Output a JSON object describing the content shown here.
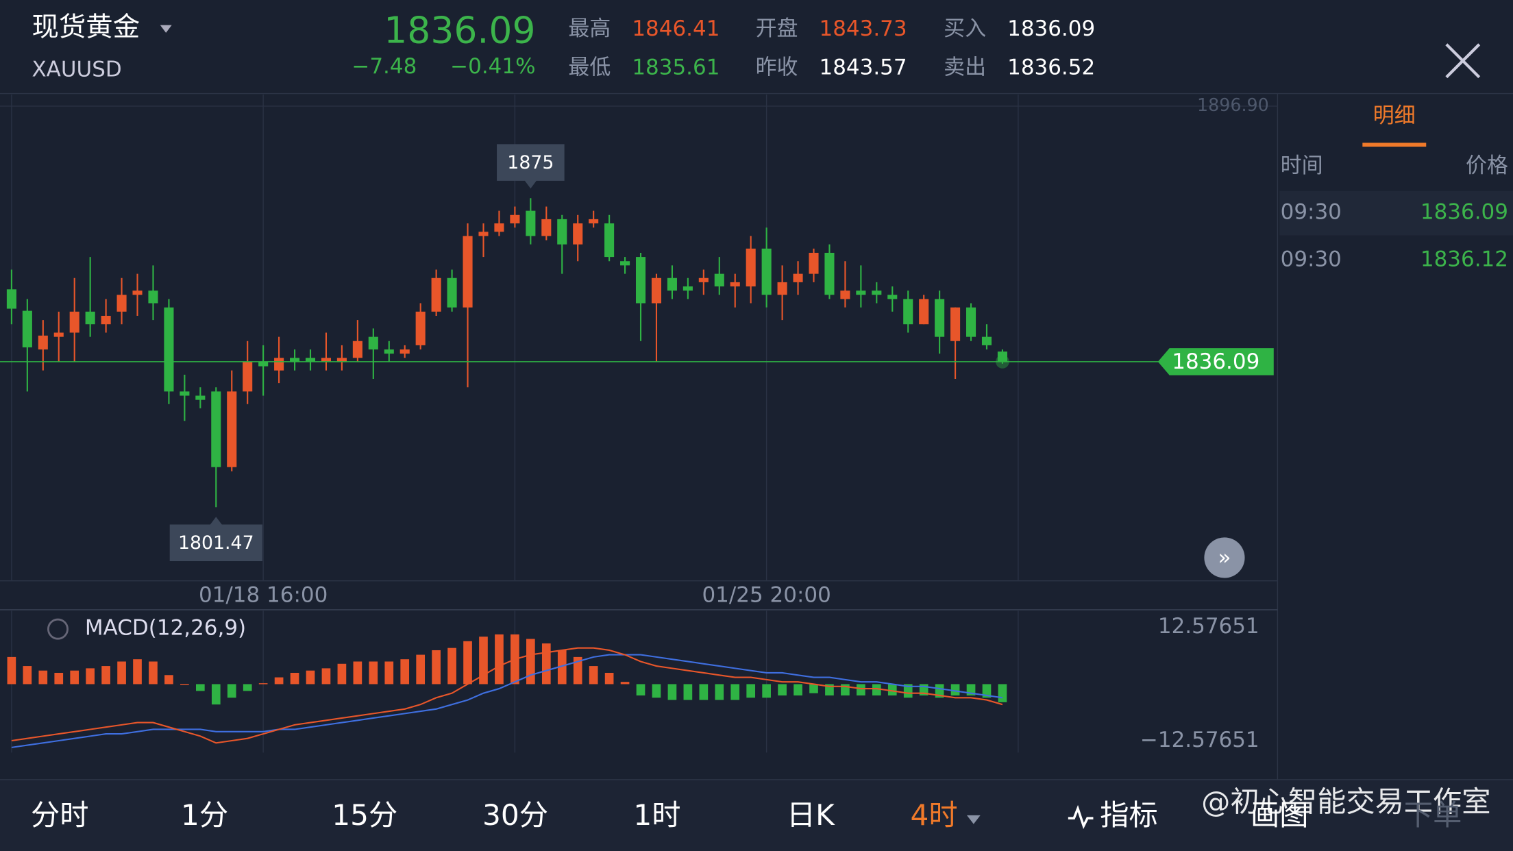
{
  "header": {
    "name": "现货黄金",
    "symbol": "XAUUSD",
    "price": "1836.09",
    "change": "−7.48",
    "change_pct": "−0.41%",
    "stats": [
      {
        "label": "最高",
        "value": "1846.41",
        "color": "#e8562a"
      },
      {
        "label": "最低",
        "value": "1835.61",
        "color": "#3cb44b"
      },
      {
        "label": "开盘",
        "value": "1843.73",
        "color": "#e8562a"
      },
      {
        "label": "昨收",
        "value": "1843.57",
        "color": "#ffffff"
      },
      {
        "label": "买入",
        "value": "1836.09",
        "color": "#ffffff"
      },
      {
        "label": "卖出",
        "value": "1836.52",
        "color": "#ffffff"
      }
    ]
  },
  "chart": {
    "ylim": [
      1784.4,
      1896.9
    ],
    "ytick": {
      "value": 1896.9,
      "label": "1896.90"
    },
    "up_color": "#e8562a",
    "down_color": "#2fb344",
    "candles": [
      [
        1853.3,
        1858,
        1845,
        1848.7
      ],
      [
        1848.2,
        1851,
        1829,
        1839.5
      ],
      [
        1839,
        1846,
        1834,
        1842.3
      ],
      [
        1842,
        1848,
        1836,
        1843
      ],
      [
        1843,
        1856,
        1836,
        1848
      ],
      [
        1848,
        1861,
        1842,
        1845
      ],
      [
        1845,
        1851,
        1843,
        1847
      ],
      [
        1848,
        1856,
        1845,
        1852
      ],
      [
        1852,
        1857,
        1847,
        1853
      ],
      [
        1853,
        1859,
        1846,
        1850
      ],
      [
        1849,
        1851,
        1826,
        1829
      ],
      [
        1829,
        1833,
        1822,
        1828
      ],
      [
        1828,
        1830,
        1825,
        1827
      ],
      [
        1829,
        1830,
        1801.47,
        1811
      ],
      [
        1811,
        1834,
        1810,
        1829
      ],
      [
        1829,
        1841,
        1826,
        1836
      ],
      [
        1836,
        1840,
        1828,
        1835
      ],
      [
        1834,
        1842,
        1831,
        1837
      ],
      [
        1837,
        1839,
        1834,
        1836
      ],
      [
        1837,
        1839,
        1834,
        1836
      ],
      [
        1836,
        1843,
        1834,
        1837
      ],
      [
        1836,
        1840,
        1834,
        1837
      ],
      [
        1837,
        1846,
        1836,
        1841
      ],
      [
        1842,
        1844,
        1832,
        1839
      ],
      [
        1839,
        1841,
        1836,
        1838
      ],
      [
        1838,
        1840,
        1837,
        1839
      ],
      [
        1840,
        1850,
        1839,
        1848
      ],
      [
        1848,
        1858,
        1847,
        1856
      ],
      [
        1856,
        1858,
        1848,
        1849
      ],
      [
        1849,
        1869,
        1830,
        1866
      ],
      [
        1866,
        1869,
        1861,
        1867
      ],
      [
        1867,
        1872,
        1866,
        1869
      ],
      [
        1869,
        1873,
        1868,
        1871
      ],
      [
        1872,
        1875,
        1864,
        1866
      ],
      [
        1866,
        1873,
        1865,
        1870
      ],
      [
        1870,
        1871,
        1857,
        1864
      ],
      [
        1864,
        1871,
        1860,
        1869
      ],
      [
        1869,
        1872,
        1868,
        1870
      ],
      [
        1869,
        1871,
        1860,
        1861
      ],
      [
        1860,
        1861,
        1857,
        1859
      ],
      [
        1861,
        1862,
        1841,
        1850
      ],
      [
        1850,
        1857,
        1836,
        1856
      ],
      [
        1856,
        1859,
        1851,
        1853
      ],
      [
        1854,
        1856,
        1851,
        1853
      ],
      [
        1855,
        1858,
        1852,
        1856
      ],
      [
        1857,
        1861,
        1852,
        1854
      ],
      [
        1854,
        1857,
        1849,
        1855
      ],
      [
        1854,
        1866,
        1850,
        1863
      ],
      [
        1863,
        1868,
        1849,
        1852
      ],
      [
        1852,
        1859,
        1846,
        1855
      ],
      [
        1855,
        1860,
        1852,
        1857
      ],
      [
        1857,
        1863,
        1855,
        1862
      ],
      [
        1862,
        1864,
        1851,
        1852
      ],
      [
        1851,
        1860,
        1849,
        1853
      ],
      [
        1853,
        1859,
        1849,
        1852
      ],
      [
        1853,
        1855,
        1850,
        1852
      ],
      [
        1852,
        1854,
        1848,
        1851
      ],
      [
        1851,
        1853,
        1843,
        1845
      ],
      [
        1845,
        1852,
        1845,
        1851
      ],
      [
        1851,
        1853,
        1838,
        1842
      ],
      [
        1841,
        1849,
        1832,
        1849
      ],
      [
        1849,
        1850,
        1841,
        1842
      ],
      [
        1842,
        1845,
        1839,
        1840
      ],
      [
        1838.5,
        1839,
        1835.61,
        1836.09
      ]
    ],
    "xticks": [
      {
        "candle": 16,
        "label": "01/18 16:00"
      },
      {
        "candle": 48,
        "label": "01/25 20:00"
      }
    ],
    "high_mark": {
      "candle": 33,
      "value": 1875,
      "label": "1875"
    },
    "low_mark": {
      "candle": 13,
      "value": 1801.47,
      "label": "1801.47"
    },
    "last_price": {
      "value": 1836.09,
      "label": "1836.09"
    }
  },
  "macd": {
    "title": "MACD(12,26,9)",
    "ylim": [
      -16.2,
      15.8
    ],
    "yticks": [
      {
        "value": 12.57651,
        "label": "12.57651"
      },
      {
        "value": -12.57651,
        "label": "−12.57651"
      }
    ],
    "dif_color": "#e8562a",
    "dea_color": "#3f6fe0",
    "hist": [
      6,
      4,
      3,
      2.5,
      3,
      3.5,
      4,
      5,
      5.5,
      5,
      2,
      0,
      -1.5,
      -4.5,
      -3,
      -1.5,
      0.2,
      1.5,
      2.5,
      3,
      3.5,
      4.5,
      5,
      5,
      5,
      5.5,
      6.5,
      7.5,
      8,
      9.5,
      10.5,
      11,
      11,
      10,
      9,
      7.5,
      6,
      4,
      2.5,
      0.5,
      -2.5,
      -3,
      -3.5,
      -3.5,
      -3.5,
      -3.5,
      -3.5,
      -3,
      -3,
      -2.5,
      -2.5,
      -2,
      -2.5,
      -2.5,
      -2.5,
      -2.5,
      -2.5,
      -3,
      -2.5,
      -3,
      -2.5,
      -2.5,
      -3,
      -4
    ],
    "dif": [
      -12.5,
      -12,
      -11.5,
      -11,
      -10.5,
      -10,
      -9.5,
      -9,
      -8.5,
      -8.5,
      -9.5,
      -10.5,
      -11.5,
      -13,
      -12.5,
      -12,
      -11,
      -10,
      -9,
      -8.5,
      -8,
      -7.5,
      -7,
      -6.5,
      -6,
      -5.5,
      -4.5,
      -3,
      -2,
      0,
      2,
      4,
      5.5,
      6.5,
      7,
      7.5,
      8,
      8,
      7.5,
      6.5,
      5,
      4,
      3.5,
      3,
      2.5,
      2,
      1.5,
      1.5,
      1,
      0.5,
      0.5,
      0,
      -0.5,
      -0.5,
      -1,
      -1,
      -1.5,
      -2,
      -2,
      -2.5,
      -3,
      -3,
      -3.5,
      -4.5
    ],
    "dea": [
      -14,
      -13.5,
      -13,
      -12.5,
      -12,
      -11.5,
      -11,
      -11,
      -10.5,
      -10,
      -10,
      -10,
      -10,
      -10.5,
      -10.5,
      -10.5,
      -10.5,
      -10,
      -10,
      -9.5,
      -9,
      -8.5,
      -8,
      -7.5,
      -7,
      -6.5,
      -6,
      -5.5,
      -4.5,
      -3.5,
      -2,
      -1,
      0.5,
      2,
      3,
      4,
      5,
      6,
      6.5,
      6.5,
      6.5,
      6,
      5.5,
      5,
      4.5,
      4,
      3.5,
      3,
      2.5,
      2.5,
      2,
      1.5,
      1.5,
      1,
      0.5,
      0.5,
      0,
      -0.5,
      -0.5,
      -1,
      -1.5,
      -2,
      -2.5,
      -3
    ]
  },
  "detail": {
    "tab": "明细",
    "columns": [
      "时间",
      "价格"
    ],
    "rows": [
      [
        "09:30",
        "1836.09"
      ],
      [
        "09:30",
        "1836.12"
      ]
    ]
  },
  "toolbar": {
    "tabs": [
      "分时",
      "1分",
      "15分",
      "30分",
      "1时",
      "日K",
      "4时"
    ],
    "active_tab": 6,
    "tools": [
      "指标",
      "画图",
      "下单"
    ]
  },
  "watermark": "@初心智能交易工作室"
}
